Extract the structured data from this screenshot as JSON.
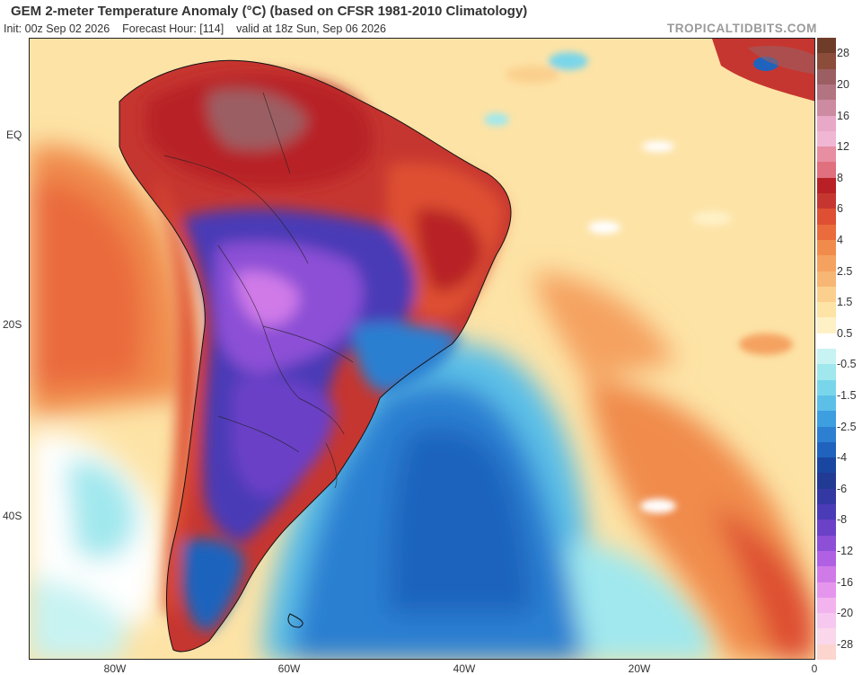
{
  "header": {
    "title": "GEM 2-meter Temperature Anomaly (°C) (based on CFSR 1981-2010 Climatology)",
    "init": "Init: 00z Sep 02 2026",
    "forecast_hour": "Forecast Hour: [114]",
    "valid": "valid at 18z Sun, Sep 06 2026",
    "brand": "TROPICALTIDBITS.COM"
  },
  "axes": {
    "lat_labels": [
      "EQ",
      "20S",
      "40S"
    ],
    "lon_labels": [
      "80W",
      "60W",
      "40W",
      "20W",
      "0"
    ]
  },
  "legend": {
    "labels": [
      "28",
      "20",
      "16",
      "12",
      "8",
      "6",
      "4",
      "2.5",
      "1.5",
      "0.5",
      "-0.5",
      "-1.5",
      "-2.5",
      "-4",
      "-6",
      "-8",
      "-12",
      "-16",
      "-20",
      "-28"
    ],
    "colors": [
      "#6e3d2a",
      "#8b4c3a",
      "#9b5f63",
      "#b37482",
      "#cc8ba0",
      "#e8a8c8",
      "#f0b7d4",
      "#e78ea2",
      "#e0707e",
      "#b82025",
      "#c63630",
      "#de4f33",
      "#ea6b3c",
      "#f08b4b",
      "#f5a260",
      "#f7b673",
      "#fbd08e",
      "#fde3a6",
      "#fff1c6",
      "#ffffff",
      "#c7f3f3",
      "#a0e8ee",
      "#79d6ea",
      "#5cbfe7",
      "#3d9ee0",
      "#2c7fd1",
      "#1f63bd",
      "#1846a0",
      "#213a94",
      "#3338a3",
      "#4a3bb6",
      "#6a41c7",
      "#8c4fd6",
      "#b060e3",
      "#d07ae8",
      "#e596ec",
      "#f2b3ee",
      "#f6c8ef",
      "#fad7ea",
      "#fcd5cf"
    ]
  },
  "colors": {
    "very_warm": "#9b5f63",
    "warm_red": "#c63630",
    "warm_orange": "#ea6b3c",
    "warm_light": "#fbd08e",
    "neutral": "#ffffff",
    "cool_light": "#a0e8ee",
    "cool_blue": "#2c7fd1",
    "cold_purple": "#8c4fd6"
  }
}
